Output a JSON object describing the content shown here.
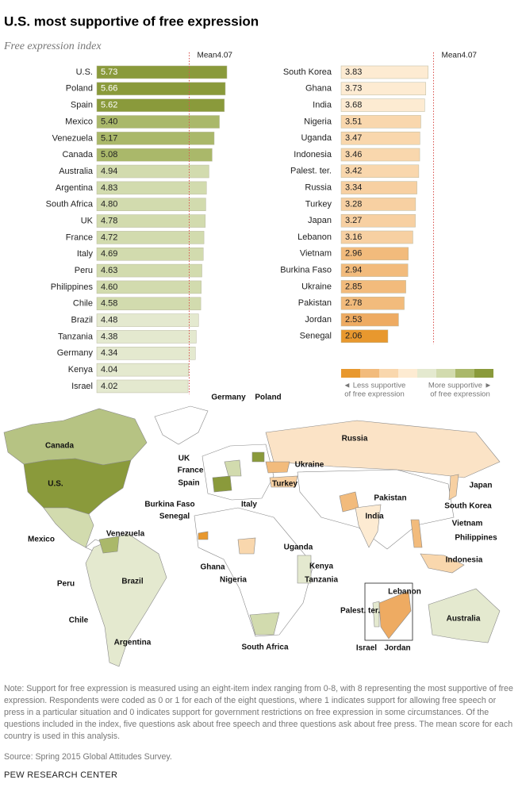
{
  "title": "U.S. most supportive of free expression",
  "subtitle": "Free expression index",
  "chart_data": [
    {
      "type": "bar",
      "orientation": "horizontal",
      "categories": [
        "U.S.",
        "Poland",
        "Spain",
        "Mexico",
        "Venezuela",
        "Canada",
        "Australia",
        "Argentina",
        "South Africa",
        "UK",
        "France",
        "Italy",
        "Peru",
        "Philippines",
        "Chile",
        "Brazil",
        "Tanzania",
        "Germany",
        "Kenya",
        "Israel"
      ],
      "values": [
        5.73,
        5.66,
        5.62,
        5.4,
        5.17,
        5.08,
        4.94,
        4.83,
        4.8,
        4.78,
        4.72,
        4.69,
        4.63,
        4.6,
        4.58,
        4.48,
        4.38,
        4.34,
        4.04,
        4.02
      ],
      "value_labels": [
        "5.73",
        "5.66",
        "5.62",
        "5.40",
        "5.17",
        "5.08",
        "4.94",
        "4.83",
        "4.80",
        "4.78",
        "4.72",
        "4.69",
        "4.63",
        "4.60",
        "4.58",
        "4.48",
        "4.38",
        "4.34",
        "4.04",
        "4.02"
      ],
      "colors": [
        "#8a9a3b",
        "#8a9a3b",
        "#8a9a3b",
        "#aab86a",
        "#aab86a",
        "#aab86a",
        "#d2dbae",
        "#d2dbae",
        "#d2dbae",
        "#d2dbae",
        "#d2dbae",
        "#d2dbae",
        "#d2dbae",
        "#d2dbae",
        "#d2dbae",
        "#e4e9cf",
        "#e4e9cf",
        "#e4e9cf",
        "#e4e9cf",
        "#e4e9cf"
      ],
      "xlim": [
        0,
        8
      ],
      "mean": 4.07,
      "mean_label": "Mean"
    },
    {
      "type": "bar",
      "orientation": "horizontal",
      "categories": [
        "South Korea",
        "Ghana",
        "India",
        "Nigeria",
        "Uganda",
        "Indonesia",
        "Palest. ter.",
        "Russia",
        "Turkey",
        "Japan",
        "Lebanon",
        "Vietnam",
        "Burkina Faso",
        "Ukraine",
        "Pakistan",
        "Jordan",
        "Senegal"
      ],
      "values": [
        3.83,
        3.73,
        3.68,
        3.51,
        3.47,
        3.46,
        3.42,
        3.34,
        3.28,
        3.27,
        3.16,
        2.96,
        2.94,
        2.85,
        2.78,
        2.53,
        2.06
      ],
      "value_labels": [
        "3.83",
        "3.73",
        "3.68",
        "3.51",
        "3.47",
        "3.46",
        "3.42",
        "3.34",
        "3.28",
        "3.27",
        "3.16",
        "2.96",
        "2.94",
        "2.85",
        "2.78",
        "2.53",
        "2.06"
      ],
      "colors": [
        "#fdebd2",
        "#fdebd2",
        "#fdebd2",
        "#f9d7ad",
        "#f9d7ad",
        "#f9d7ad",
        "#f9d7ad",
        "#f7d0a2",
        "#f7d0a2",
        "#f7d0a2",
        "#f7d0a2",
        "#f2bb7c",
        "#f2bb7c",
        "#f2bb7c",
        "#f2bb7c",
        "#eeab62",
        "#e8982e"
      ],
      "xlim": [
        0,
        8
      ],
      "mean": 4.07,
      "mean_label": "Mean"
    }
  ],
  "legend": {
    "colors": [
      "#e8982e",
      "#f2bb7c",
      "#f9d7ad",
      "#fdebd2",
      "#e4e9cf",
      "#d2dbae",
      "#aab86a",
      "#8a9a3b"
    ],
    "low_label": [
      "◄ Less supportive",
      "of free expression"
    ],
    "high_label": [
      "More supportive ►",
      "of free expression"
    ]
  },
  "map_labels": [
    "Germany",
    "Poland",
    "Canada",
    "Russia",
    "UK",
    "France",
    "Spain",
    "Ukraine",
    "U.S.",
    "Turkey",
    "Japan",
    "Italy",
    "Pakistan",
    "South Korea",
    "Burkina Faso",
    "Senegal",
    "India",
    "Vietnam",
    "Mexico",
    "Venezuela",
    "Philippines",
    "Uganda",
    "Ghana",
    "Indonesia",
    "Kenya",
    "Nigeria",
    "Tanzania",
    "Peru",
    "Brazil",
    "Lebanon",
    "Palest. ter.",
    "Chile",
    "Australia",
    "Argentina",
    "South Africa",
    "Israel",
    "Jordan"
  ],
  "note": "Note: Support for free expression is measured using an eight-item index ranging from 0-8, with 8 representing the most supportive of free expression. Respondents were coded as 0 or 1 for each of the eight questions, where 1 indicates support for allowing free speech or press in a particular situation and 0 indicates support for government restrictions on free expression in some circumstances. Of the questions included in the index, five questions ask about free speech and three questions ask about free press. The mean score for each country is used in this analysis.",
  "source": "Source: Spring 2015 Global Attitudes Survey.",
  "footer": "PEW RESEARCH CENTER"
}
